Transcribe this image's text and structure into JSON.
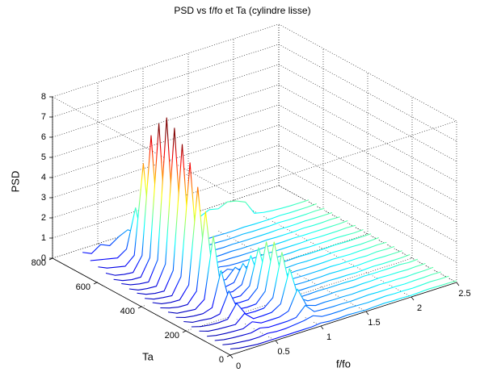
{
  "chart_data": {
    "type": "waterfall",
    "title": "PSD vs f/fo et Ta (cylindre lisse)",
    "x_label": "f/fo",
    "y_label": "Ta",
    "z_label": "PSD",
    "x": [
      0,
      0.1,
      0.2,
      0.3,
      0.4,
      0.5,
      0.6,
      0.7,
      0.8,
      0.9,
      1,
      1.1,
      1.2,
      1.3,
      1.4,
      1.5,
      1.6,
      1.7,
      1.8,
      1.9,
      2,
      2.1,
      2.2,
      2.3,
      2.4,
      2.5
    ],
    "xlim": [
      0,
      2.5
    ],
    "xticks": [
      0,
      0.5,
      1,
      1.5,
      2,
      2.5
    ],
    "ylim": [
      0,
      800
    ],
    "yticks": [
      0,
      200,
      400,
      600,
      800
    ],
    "zlim": [
      0,
      8
    ],
    "zticks": [
      0,
      1,
      2,
      3,
      4,
      5,
      6,
      7,
      8
    ],
    "grid": true,
    "colormap": "jet",
    "series": [
      {
        "y": 0,
        "values": [
          0.3,
          0.2,
          0.15,
          0.1,
          0.1,
          0.1,
          0.1,
          0.1,
          0.1,
          0.1,
          0.15,
          0.1,
          0.1,
          0.12,
          0.1,
          0.08,
          0.1,
          0.12,
          0.1,
          0.1,
          0.08,
          0.1,
          0.12,
          0.1,
          0.1,
          0.08
        ]
      },
      {
        "y": 35,
        "values": [
          0.3,
          0.2,
          0.15,
          0.1,
          0.1,
          0.15,
          0.1,
          0.1,
          0.15,
          0.2,
          0.3,
          0.12,
          0.1,
          0.1,
          0.12,
          0.1,
          0.08,
          0.1,
          0.12,
          0.1,
          0.1,
          0.08,
          0.1,
          0.12,
          0.1,
          0.1
        ]
      },
      {
        "y": 70,
        "values": [
          0.3,
          0.2,
          0.15,
          0.12,
          0.1,
          0.2,
          0.1,
          0.1,
          0.1,
          0.15,
          0.6,
          0.15,
          0.12,
          0.1,
          0.1,
          0.08,
          0.1,
          0.12,
          0.1,
          0.1,
          0.1,
          0.08,
          0.1,
          0.1,
          0.12,
          0.1
        ]
      },
      {
        "y": 105,
        "values": [
          0.3,
          0.2,
          0.15,
          0.12,
          0.1,
          0.3,
          0.1,
          0.1,
          0.1,
          0.25,
          1.2,
          0.25,
          0.1,
          0.12,
          0.1,
          0.1,
          0.08,
          0.1,
          0.1,
          0.12,
          0.1,
          0.1,
          0.08,
          0.1,
          0.1,
          0.12
        ]
      },
      {
        "y": 140,
        "values": [
          0.35,
          0.2,
          0.15,
          0.12,
          0.1,
          0.5,
          0.1,
          0.1,
          0.12,
          0.4,
          2.0,
          0.4,
          0.12,
          0.1,
          0.1,
          0.12,
          0.1,
          0.08,
          0.1,
          0.1,
          0.12,
          0.1,
          0.1,
          0.08,
          0.1,
          0.1
        ]
      },
      {
        "y": 175,
        "values": [
          0.35,
          0.22,
          0.15,
          0.12,
          0.15,
          0.8,
          0.12,
          0.1,
          0.12,
          0.5,
          2.6,
          0.5,
          0.1,
          0.1,
          0.12,
          0.1,
          0.1,
          0.1,
          0.08,
          0.12,
          0.1,
          0.1,
          0.1,
          0.12,
          0.08,
          0.1
        ]
      },
      {
        "y": 210,
        "values": [
          0.4,
          0.22,
          0.18,
          0.12,
          0.2,
          1.2,
          0.15,
          0.1,
          0.12,
          0.6,
          2.9,
          0.6,
          0.12,
          0.1,
          0.1,
          0.1,
          0.12,
          0.1,
          0.1,
          0.08,
          0.1,
          0.12,
          0.1,
          0.1,
          0.1,
          0.12
        ]
      },
      {
        "y": 245,
        "values": [
          0.4,
          0.25,
          0.18,
          0.15,
          0.3,
          2.0,
          0.2,
          0.12,
          0.12,
          0.55,
          2.7,
          0.5,
          0.1,
          0.12,
          0.1,
          0.1,
          0.1,
          0.12,
          0.1,
          0.1,
          0.08,
          0.1,
          0.12,
          0.1,
          0.1,
          0.1
        ]
      },
      {
        "y": 280,
        "values": [
          0.45,
          0.25,
          0.2,
          0.15,
          0.5,
          3.5,
          0.35,
          0.12,
          0.1,
          0.45,
          2.2,
          0.4,
          0.12,
          0.1,
          0.12,
          0.1,
          0.1,
          0.1,
          0.12,
          0.1,
          0.1,
          0.1,
          0.08,
          0.12,
          0.1,
          0.1
        ]
      },
      {
        "y": 315,
        "values": [
          0.45,
          0.3,
          0.2,
          0.18,
          0.7,
          4.5,
          0.45,
          0.15,
          0.1,
          0.3,
          1.6,
          0.3,
          0.1,
          0.1,
          0.1,
          0.12,
          0.1,
          0.1,
          0.1,
          0.12,
          0.1,
          0.08,
          0.1,
          0.1,
          0.12,
          0.1
        ]
      },
      {
        "y": 350,
        "values": [
          0.5,
          0.3,
          0.22,
          0.2,
          0.8,
          5.5,
          0.55,
          0.15,
          0.12,
          0.2,
          1.0,
          0.2,
          0.12,
          0.1,
          0.1,
          0.1,
          0.12,
          0.1,
          0.1,
          0.1,
          0.12,
          0.1,
          0.1,
          0.08,
          0.1,
          0.12
        ]
      },
      {
        "y": 385,
        "values": [
          0.5,
          0.32,
          0.25,
          0.2,
          1.0,
          6.5,
          0.65,
          0.15,
          0.12,
          0.15,
          0.6,
          0.15,
          0.1,
          0.12,
          0.1,
          0.1,
          0.1,
          0.12,
          0.1,
          0.1,
          0.1,
          0.12,
          0.1,
          0.1,
          0.1,
          0.1
        ]
      },
      {
        "y": 420,
        "values": [
          0.55,
          0.35,
          0.25,
          0.22,
          1.1,
          7.2,
          0.7,
          0.15,
          0.12,
          0.1,
          0.3,
          0.1,
          0.12,
          0.1,
          0.12,
          0.1,
          0.1,
          0.1,
          0.12,
          0.1,
          0.1,
          0.1,
          0.12,
          0.1,
          0.08,
          0.1
        ]
      },
      {
        "y": 455,
        "values": [
          0.55,
          0.35,
          0.28,
          0.25,
          1.2,
          7.8,
          0.8,
          0.18,
          0.12,
          0.12,
          0.2,
          0.12,
          0.1,
          0.1,
          0.1,
          0.12,
          0.1,
          0.1,
          0.1,
          0.1,
          0.12,
          0.1,
          0.1,
          0.1,
          0.12,
          0.1
        ]
      },
      {
        "y": 490,
        "values": [
          0.6,
          0.4,
          0.3,
          0.25,
          1.2,
          8.1,
          0.8,
          0.2,
          0.15,
          0.12,
          0.15,
          0.12,
          0.12,
          0.1,
          0.1,
          0.1,
          0.12,
          0.1,
          0.1,
          0.12,
          0.1,
          0.1,
          0.1,
          0.1,
          0.1,
          0.12
        ]
      },
      {
        "y": 525,
        "values": [
          0.6,
          0.4,
          0.3,
          0.28,
          1.1,
          7.6,
          0.75,
          0.2,
          0.15,
          0.12,
          0.15,
          0.1,
          0.1,
          0.12,
          0.1,
          0.1,
          0.1,
          0.12,
          0.1,
          0.1,
          0.1,
          0.12,
          0.1,
          0.1,
          0.12,
          0.1
        ]
      },
      {
        "y": 560,
        "values": [
          0.7,
          0.45,
          0.35,
          0.3,
          1.0,
          6.8,
          0.7,
          0.25,
          0.18,
          0.15,
          0.15,
          0.12,
          0.12,
          0.1,
          0.12,
          0.1,
          0.1,
          0.1,
          0.1,
          0.12,
          0.1,
          0.1,
          0.12,
          0.1,
          0.1,
          0.1
        ]
      },
      {
        "y": 595,
        "values": [
          0.8,
          0.6,
          0.5,
          0.4,
          0.8,
          5.2,
          0.5,
          0.3,
          0.2,
          0.18,
          0.15,
          0.15,
          0.12,
          0.12,
          0.1,
          0.1,
          0.12,
          0.1,
          0.1,
          0.1,
          0.12,
          0.1,
          0.1,
          0.1,
          0.12,
          0.1
        ]
      },
      {
        "y": 630,
        "values": [
          0.9,
          0.8,
          0.7,
          0.6,
          0.9,
          2.8,
          0.6,
          0.5,
          0.4,
          0.3,
          0.25,
          0.2,
          0.15,
          0.12,
          0.12,
          0.1,
          0.1,
          0.12,
          0.1,
          0.1,
          0.1,
          0.12,
          0.1,
          0.1,
          0.1,
          0.12
        ]
      },
      {
        "y": 665,
        "values": [
          1.1,
          0.9,
          1.2,
          1.0,
          1.3,
          1.5,
          1.2,
          1.1,
          1.3,
          1.2,
          1.1,
          1.3,
          1.2,
          1.0,
          1.2,
          1.1,
          1.3,
          1.2,
          1.0,
          0.3,
          0.2,
          0.15,
          0.12,
          0.1,
          0.1,
          0.1
        ]
      }
    ]
  }
}
